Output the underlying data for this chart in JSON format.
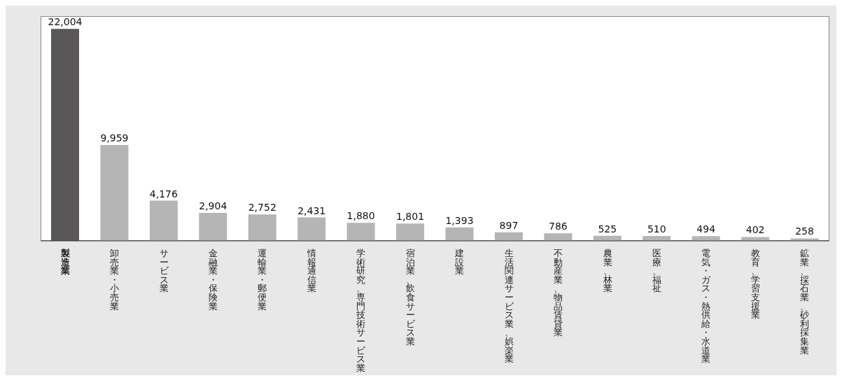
{
  "chart_data": {
    "type": "bar",
    "categories": [
      "製造業",
      "卸売業・小売業",
      "サービス業",
      "金融業・保険業",
      "運輸業・郵便業",
      "情報通信業",
      "学術研究、専門技術サービス業",
      "宿泊業、飲食サービス業",
      "建設業",
      "生活関連サービス業、娯楽業",
      "不動産業、物品賃貸業",
      "農業、林業",
      "医療、福祉",
      "電気・ガス・熱供給・水道業",
      "教育、学習支援業",
      "鉱業、採石業、砂利採集業"
    ],
    "values": [
      22004,
      9959,
      4176,
      2904,
      2752,
      2431,
      1880,
      1801,
      1393,
      897,
      786,
      525,
      510,
      494,
      402,
      258
    ],
    "value_labels": [
      "22,004",
      "9,959",
      "4,176",
      "2,904",
      "2,752",
      "2,431",
      "1,880",
      "1,801",
      "1,393",
      "897",
      "786",
      "525",
      "510",
      "494",
      "402",
      "258"
    ],
    "colors": [
      "#595757",
      "#b5b5b5",
      "#b5b5b5",
      "#b5b5b5",
      "#b5b5b5",
      "#b5b5b5",
      "#b5b5b5",
      "#b5b5b5",
      "#b5b5b5",
      "#b5b5b5",
      "#b5b5b5",
      "#b5b5b5",
      "#b5b5b5",
      "#b5b5b5",
      "#b5b5b5",
      "#b5b5b5"
    ]
  }
}
